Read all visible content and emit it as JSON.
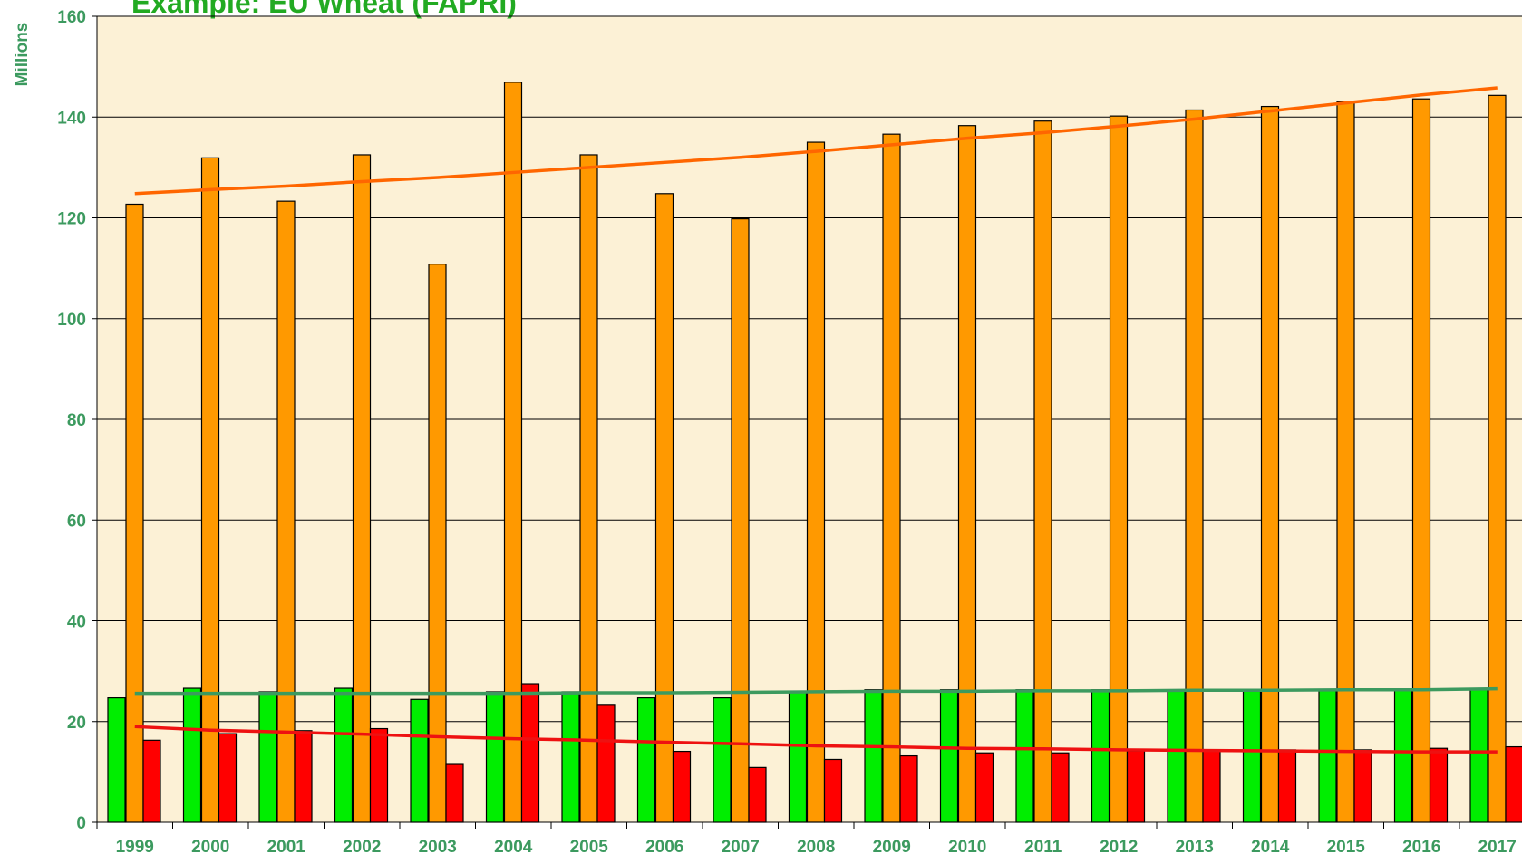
{
  "chart_data": {
    "type": "bar",
    "title": "Example: EU Wheat (FAPRI)",
    "y_label": "Millions",
    "categories": [
      "1999",
      "2000",
      "2001",
      "2002",
      "2003",
      "2004",
      "2005",
      "2006",
      "2007",
      "2008",
      "2009",
      "2010",
      "2011",
      "2012",
      "2013",
      "2014",
      "2015",
      "2016",
      "2017"
    ],
    "series": [
      {
        "color": "#00ee00",
        "values": [
          24.7,
          26.6,
          25.9,
          26.6,
          24.4,
          25.9,
          25.9,
          24.7,
          24.7,
          25.9,
          26.3,
          26.3,
          26.3,
          26.3,
          26.3,
          26.3,
          26.3,
          26.3,
          26.3
        ]
      },
      {
        "color": "#ff9900",
        "values": [
          122.7,
          131.9,
          123.3,
          132.5,
          110.8,
          146.9,
          132.5,
          124.8,
          119.8,
          135.0,
          136.6,
          138.3,
          139.2,
          140.2,
          141.4,
          142.1,
          143.0,
          143.6,
          144.3
        ]
      },
      {
        "color": "#ff0000",
        "values": [
          16.3,
          17.6,
          18.2,
          18.6,
          11.5,
          27.5,
          23.4,
          14.1,
          10.9,
          12.5,
          13.2,
          13.8,
          13.8,
          14.2,
          14.2,
          14.4,
          14.4,
          14.7,
          15.0
        ]
      },
      {
        "type": "line",
        "color": "#3c9a5f",
        "values": [
          25.6,
          25.6,
          25.6,
          25.6,
          25.6,
          25.6,
          25.7,
          25.7,
          25.8,
          25.9,
          26.0,
          26.0,
          26.1,
          26.1,
          26.2,
          26.2,
          26.3,
          26.3,
          26.5
        ]
      },
      {
        "type": "line",
        "color": "#ff6600",
        "values": [
          124.8,
          125.6,
          126.3,
          127.2,
          128.0,
          129.0,
          130.0,
          131.0,
          132.0,
          133.2,
          134.5,
          135.8,
          136.9,
          138.2,
          139.6,
          141.2,
          142.8,
          144.4,
          145.8
        ]
      },
      {
        "type": "line",
        "color": "#ee1111",
        "values": [
          19.0,
          18.3,
          17.9,
          17.5,
          17.0,
          16.6,
          16.3,
          15.9,
          15.6,
          15.2,
          15.0,
          14.7,
          14.6,
          14.4,
          14.3,
          14.2,
          14.1,
          14.0,
          14.0
        ]
      }
    ],
    "ylim": [
      0,
      160
    ],
    "yticks": [
      0,
      20,
      40,
      60,
      80,
      100,
      120,
      140,
      160
    ],
    "grid": true
  }
}
